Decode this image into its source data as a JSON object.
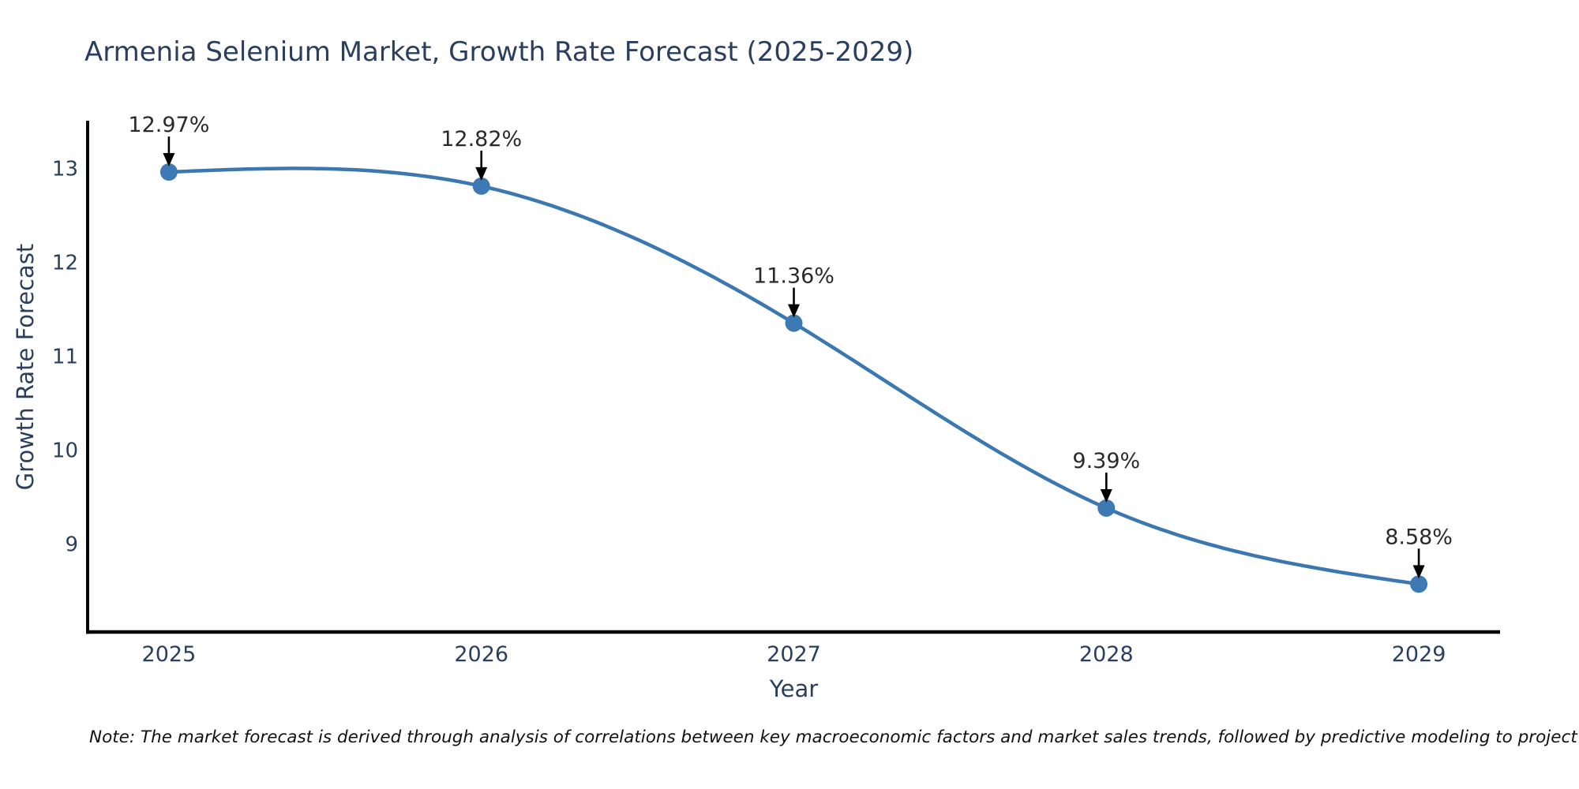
{
  "chart_data": {
    "type": "line",
    "title": "Armenia Selenium Market, Growth Rate Forecast (2025-2029)",
    "xlabel": "Year",
    "ylabel": "Growth Rate Forecast",
    "x": [
      2025,
      2026,
      2027,
      2028,
      2029
    ],
    "y": [
      12.97,
      12.82,
      11.36,
      9.39,
      8.58
    ],
    "point_labels": [
      "12.97%",
      "12.82%",
      "11.36%",
      "9.39%",
      "8.58%"
    ],
    "xticks": [
      "2025",
      "2026",
      "2027",
      "2028",
      "2029"
    ],
    "yticks": [
      13,
      12,
      11,
      10,
      9
    ],
    "xlim": [
      2024.74,
      2029.26
    ],
    "ylim": [
      8.07,
      13.5
    ],
    "line_shape": "spline",
    "grid": false,
    "legend": false,
    "colors": {
      "line": "#3b77b0",
      "marker": "#3d79b3",
      "axis": "#000000",
      "tick_text": "#2a3f5f",
      "annotation_text": "#2a2a2a",
      "arrow": "#000000"
    },
    "note": "Note: The market forecast is derived through analysis of correlations between key macroeconomic factors and market sales trends, followed by predictive modeling to project future sales"
  }
}
